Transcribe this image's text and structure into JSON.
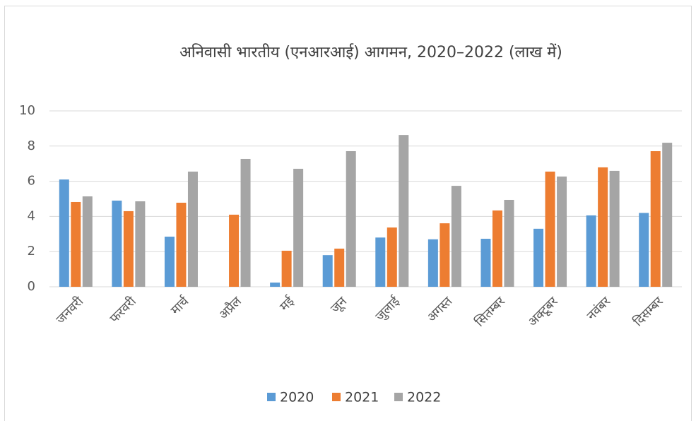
{
  "chart_data": {
    "type": "bar",
    "title": "अनिवासी भारतीय (एनआरआई) आगमन, 2020–2022 (लाख में)",
    "categories": [
      "जनवरी",
      "फरवरी",
      "मार्च",
      "अप्रैल",
      "मई",
      "जून",
      "जुलाई",
      "अगस्त",
      "सितम्बर",
      "अक्टूबर",
      "नवंबर",
      "दिसम्बर"
    ],
    "series": [
      {
        "name": "2020",
        "color": "#5b9bd5",
        "values": [
          6.1,
          4.9,
          2.85,
          null,
          0.24,
          1.8,
          2.8,
          2.7,
          2.73,
          3.3,
          4.06,
          4.2
        ]
      },
      {
        "name": "2021",
        "color": "#ed7d31",
        "values": [
          4.82,
          4.3,
          4.78,
          4.1,
          2.05,
          2.17,
          3.37,
          3.61,
          4.34,
          6.55,
          6.79,
          7.71
        ]
      },
      {
        "name": "2022",
        "color": "#a5a5a5",
        "values": [
          5.14,
          4.86,
          6.55,
          7.27,
          6.71,
          7.71,
          8.63,
          5.74,
          4.94,
          6.27,
          6.59,
          8.19
        ]
      }
    ],
    "ylim": [
      0,
      10
    ],
    "yticks": [
      0,
      2,
      4,
      6,
      8,
      10
    ],
    "grid": true,
    "legend": "bottom"
  }
}
